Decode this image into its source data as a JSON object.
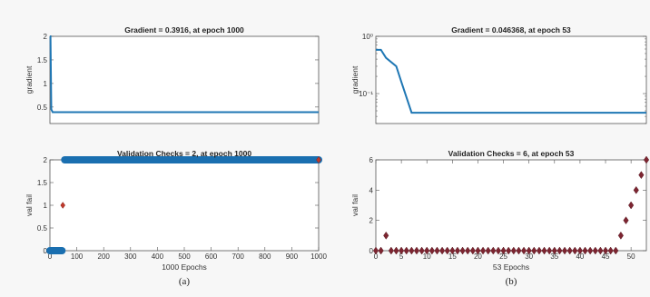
{
  "colors": {
    "line": "#1f77b4",
    "marker_a": "#1a6fb0",
    "marker_b": "#7d2531",
    "axis_bg": "#ffffff",
    "frame": "#555555"
  },
  "chart_data": [
    {
      "id": "a-gradient",
      "type": "line",
      "title": "Gradient = 0.3916, at epoch 1000",
      "ylabel": "gradient",
      "xlabel": "",
      "xlim": [
        0,
        1000
      ],
      "ylim": [
        0.15,
        2
      ],
      "yscale": "linear",
      "yticks": [
        0.5,
        1,
        1.5,
        2
      ],
      "ytick_labels": [
        "0.5",
        "1",
        "1.5",
        "2"
      ],
      "series": [
        {
          "x": [
            0,
            2,
            5,
            10,
            1000
          ],
          "y": [
            2,
            2,
            0.45,
            0.3916,
            0.3916
          ]
        }
      ]
    },
    {
      "id": "a-validation",
      "type": "scatter",
      "title": "Validation Checks = 2, at epoch 1000",
      "ylabel": "val fail",
      "xlabel": "1000 Epochs",
      "xlim": [
        0,
        1000
      ],
      "ylim": [
        0,
        2
      ],
      "yscale": "linear",
      "xticks": [
        0,
        100,
        200,
        300,
        400,
        500,
        600,
        700,
        800,
        900,
        1000
      ],
      "xtick_labels": [
        "0",
        "100",
        "200",
        "300",
        "400",
        "500",
        "600",
        "700",
        "800",
        "900",
        "1000"
      ],
      "yticks": [
        0,
        0.5,
        1,
        1.5,
        2
      ],
      "ytick_labels": [
        "0",
        "0.5",
        "1",
        "1.5",
        "2"
      ],
      "marker": "circle",
      "segments": [
        {
          "x_from": 0,
          "x_to": 45,
          "y": 0
        },
        {
          "x_from": 55,
          "x_to": 1000,
          "y": 2
        }
      ],
      "points": [
        {
          "x": 48,
          "y": 1
        },
        {
          "x": 1000,
          "y": 2
        }
      ]
    },
    {
      "id": "b-gradient",
      "type": "line",
      "title": "Gradient = 0.046368, at epoch 53",
      "ylabel": "gradient",
      "xlabel": "",
      "xlim": [
        0,
        53
      ],
      "ylim": [
        0.03,
        1
      ],
      "yscale": "log",
      "yticks": [
        0.1,
        1
      ],
      "ytick_labels": [
        "10⁻¹",
        "10⁰"
      ],
      "series": [
        {
          "x": [
            0,
            1,
            2,
            4,
            5,
            7,
            53
          ],
          "y": [
            0.58,
            0.58,
            0.42,
            0.3,
            0.16,
            0.046368,
            0.046368
          ]
        }
      ]
    },
    {
      "id": "b-validation",
      "type": "scatter",
      "title": "Validation Checks = 6, at epoch 53",
      "ylabel": "val fail",
      "xlabel": "53 Epochs",
      "xlim": [
        0,
        53
      ],
      "ylim": [
        0,
        6
      ],
      "yscale": "linear",
      "xticks": [
        0,
        5,
        10,
        15,
        20,
        25,
        30,
        35,
        40,
        45,
        50
      ],
      "xtick_labels": [
        "0",
        "5",
        "10",
        "15",
        "20",
        "25",
        "30",
        "35",
        "40",
        "45",
        "50"
      ],
      "yticks": [
        0,
        2,
        4,
        6
      ],
      "ytick_labels": [
        "0",
        "2",
        "4",
        "6"
      ],
      "marker": "diamond",
      "points": [
        {
          "x": 0,
          "y": 0
        },
        {
          "x": 1,
          "y": 0
        },
        {
          "x": 2,
          "y": 1
        },
        {
          "x": 3,
          "y": 0
        },
        {
          "x": 4,
          "y": 0
        },
        {
          "x": 5,
          "y": 0
        },
        {
          "x": 6,
          "y": 0
        },
        {
          "x": 7,
          "y": 0
        },
        {
          "x": 8,
          "y": 0
        },
        {
          "x": 9,
          "y": 0
        },
        {
          "x": 10,
          "y": 0
        },
        {
          "x": 11,
          "y": 0
        },
        {
          "x": 12,
          "y": 0
        },
        {
          "x": 13,
          "y": 0
        },
        {
          "x": 14,
          "y": 0
        },
        {
          "x": 15,
          "y": 0
        },
        {
          "x": 16,
          "y": 0
        },
        {
          "x": 17,
          "y": 0
        },
        {
          "x": 18,
          "y": 0
        },
        {
          "x": 19,
          "y": 0
        },
        {
          "x": 20,
          "y": 0
        },
        {
          "x": 21,
          "y": 0
        },
        {
          "x": 22,
          "y": 0
        },
        {
          "x": 23,
          "y": 0
        },
        {
          "x": 24,
          "y": 0
        },
        {
          "x": 25,
          "y": 0
        },
        {
          "x": 26,
          "y": 0
        },
        {
          "x": 27,
          "y": 0
        },
        {
          "x": 28,
          "y": 0
        },
        {
          "x": 29,
          "y": 0
        },
        {
          "x": 30,
          "y": 0
        },
        {
          "x": 31,
          "y": 0
        },
        {
          "x": 32,
          "y": 0
        },
        {
          "x": 33,
          "y": 0
        },
        {
          "x": 34,
          "y": 0
        },
        {
          "x": 35,
          "y": 0
        },
        {
          "x": 36,
          "y": 0
        },
        {
          "x": 37,
          "y": 0
        },
        {
          "x": 38,
          "y": 0
        },
        {
          "x": 39,
          "y": 0
        },
        {
          "x": 40,
          "y": 0
        },
        {
          "x": 41,
          "y": 0
        },
        {
          "x": 42,
          "y": 0
        },
        {
          "x": 43,
          "y": 0
        },
        {
          "x": 44,
          "y": 0
        },
        {
          "x": 45,
          "y": 0
        },
        {
          "x": 46,
          "y": 0
        },
        {
          "x": 47,
          "y": 0
        },
        {
          "x": 48,
          "y": 1
        },
        {
          "x": 49,
          "y": 2
        },
        {
          "x": 50,
          "y": 3
        },
        {
          "x": 51,
          "y": 4
        },
        {
          "x": 52,
          "y": 5
        },
        {
          "x": 53,
          "y": 6
        }
      ]
    }
  ],
  "captions": {
    "a": "(a)",
    "b": "(b)"
  }
}
